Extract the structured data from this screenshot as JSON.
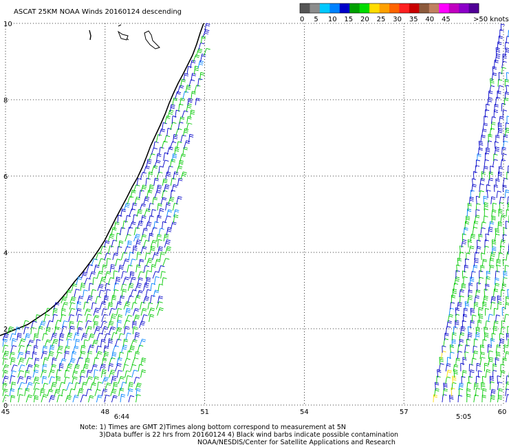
{
  "title": "ASCAT 25KM NOAA Winds 20160124 descending",
  "colorbar": {
    "colors": [
      "#555555",
      "#8c8c8c",
      "#00c8ff",
      "#0082ff",
      "#0000c8",
      "#00a000",
      "#00dc00",
      "#ffdc00",
      "#ffa000",
      "#ff6400",
      "#ff2020",
      "#c80000",
      "#8c5a3c",
      "#c08060",
      "#ff00ff",
      "#c000c0",
      "#8c00c8",
      "#500096"
    ],
    "labels": [
      "0",
      "5",
      "10",
      "15",
      "20",
      "25",
      "30",
      "35",
      "40",
      "45",
      ">50 knots"
    ]
  },
  "axes": {
    "x_ticks": [
      "45",
      "48",
      "51",
      "54",
      "57",
      "60"
    ],
    "y_ticks": [
      "0",
      "2",
      "4",
      "6",
      "8",
      "10"
    ],
    "lon_range": [
      45,
      60
    ],
    "lat_range": [
      0,
      10
    ]
  },
  "pass_times": [
    {
      "label": "6:44",
      "lon": 48.5
    },
    {
      "label": "5:05",
      "lon": 58.8
    }
  ],
  "pass_time_color": "#7a2a9a",
  "barb_colors": {
    "dark_blue": "#0000c8",
    "blue": "#0082ff",
    "green": "#00c800",
    "yellow": "#ffdc00"
  },
  "notes": [
    "Note: 1) Times are GMT 2)Times along bottom correspond to measurement at 5N",
    "3)Data buffer is 22 hrs from 20160124 4) Black wind barbs indicate possible contamination",
    "NOAA/NESDIS/Center for Satellite Applications and Research"
  ]
}
